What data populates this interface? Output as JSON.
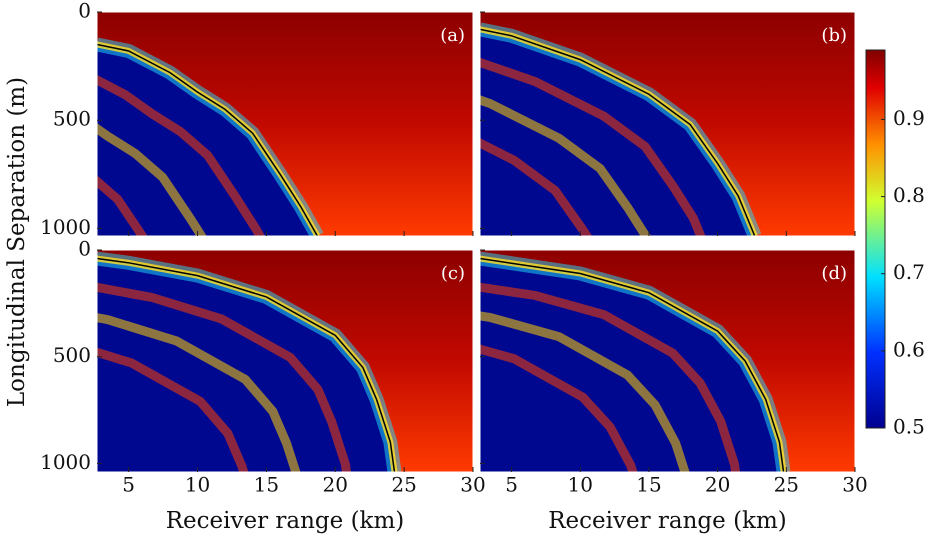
{
  "ylabel": "Longitudinal Separation (m)",
  "colorbar": {
    "clim": [
      0.5,
      0.99
    ],
    "ticks": [
      0.5,
      0.6,
      0.7,
      0.8,
      0.9
    ]
  },
  "chart_data": [
    {
      "type": "heatmap",
      "label": "(a)",
      "xlim": [
        2.7,
        30
      ],
      "ylim": [
        0,
        1035
      ],
      "xticks": [
        5,
        10,
        15,
        20,
        25,
        30
      ],
      "yticks": [
        0,
        500,
        1000
      ],
      "x_tick_labels": false,
      "y_tick_labels": true,
      "boundary": {
        "color": "#000000",
        "x": [
          2.7,
          5,
          8,
          10,
          12,
          14,
          16,
          17.5,
          18.7
        ],
        "y": [
          150,
          180,
          280,
          370,
          450,
          560,
          750,
          900,
          1035
        ]
      }
    },
    {
      "type": "heatmap",
      "label": "(b)",
      "xlim": [
        2.7,
        30
      ],
      "ylim": [
        0,
        1035
      ],
      "xticks": [
        5,
        10,
        15,
        20,
        25,
        30
      ],
      "yticks": [
        0,
        500,
        1000
      ],
      "x_tick_labels": false,
      "y_tick_labels": false,
      "boundary": {
        "color": "#000000",
        "x": [
          2.7,
          5,
          10,
          15,
          18,
          20,
          21.5,
          22.7
        ],
        "y": [
          80,
          110,
          220,
          380,
          520,
          700,
          850,
          1035
        ]
      }
    },
    {
      "type": "heatmap",
      "label": "(c)",
      "xlabel": "Receiver range (km)",
      "xlim": [
        2.7,
        30
      ],
      "ylim": [
        0,
        1040
      ],
      "xticks": [
        5,
        10,
        15,
        20,
        25,
        30
      ],
      "yticks": [
        0,
        500,
        1000
      ],
      "x_tick_labels": true,
      "y_tick_labels": true,
      "boundary": {
        "color": "#000000",
        "x": [
          2.7,
          5,
          10,
          15,
          20,
          22,
          23,
          24,
          24.3
        ],
        "y": [
          40,
          60,
          120,
          220,
          400,
          550,
          700,
          900,
          1040
        ]
      }
    },
    {
      "type": "heatmap",
      "label": "(d)",
      "xlabel": "Receiver range (km)",
      "xlim": [
        2.7,
        30
      ],
      "ylim": [
        0,
        1040
      ],
      "xticks": [
        5,
        10,
        15,
        20,
        25,
        30
      ],
      "yticks": [
        0,
        500,
        1000
      ],
      "x_tick_labels": true,
      "y_tick_labels": false,
      "boundary": {
        "color": "#000000",
        "x": [
          2.7,
          10,
          15,
          20,
          22,
          23.5,
          24.5,
          24.8
        ],
        "y": [
          40,
          110,
          200,
          380,
          520,
          700,
          900,
          1040
        ]
      }
    }
  ]
}
